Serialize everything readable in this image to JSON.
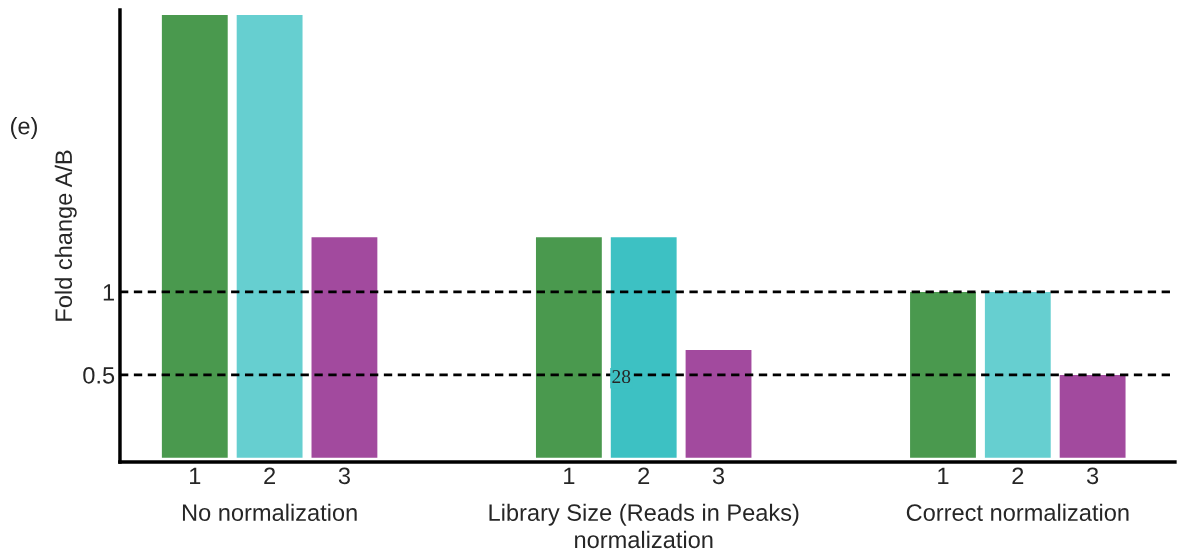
{
  "chart_data": {
    "type": "bar",
    "ylabel": "Fold change A/B",
    "categories": [
      "1",
      "2",
      "3",
      null,
      null,
      "1",
      "2",
      "3",
      null,
      null,
      "1",
      "2",
      "3"
    ],
    "values": [
      2.67,
      2.67,
      1.33,
      null,
      null,
      1.33,
      1.33,
      0.65,
      null,
      null,
      1.0,
      1.0,
      0.5
    ],
    "colors": [
      "#4a994e",
      "#66cfd0",
      "#a24a9e",
      null,
      null,
      "#4a994e",
      "#3dc1c3",
      "#a24a9e",
      null,
      null,
      "#4a994e",
      "#66cfd0",
      "#a24a9e"
    ],
    "ylim": [
      -0.025,
      2.7
    ],
    "yticks": [
      0.5,
      1
    ],
    "grid": false,
    "ref_lines": [
      {
        "axis": "y",
        "value": 1,
        "color": "#000000",
        "line_style": "dashed"
      },
      {
        "axis": "y",
        "value": 0.5,
        "color": "#000000",
        "line_style": "dashed"
      }
    ],
    "annotations": [
      "(e)",
      "No normalization",
      "Library Size (Reads in Peaks)\nnormalization",
      "Correct normalization",
      "28"
    ]
  }
}
